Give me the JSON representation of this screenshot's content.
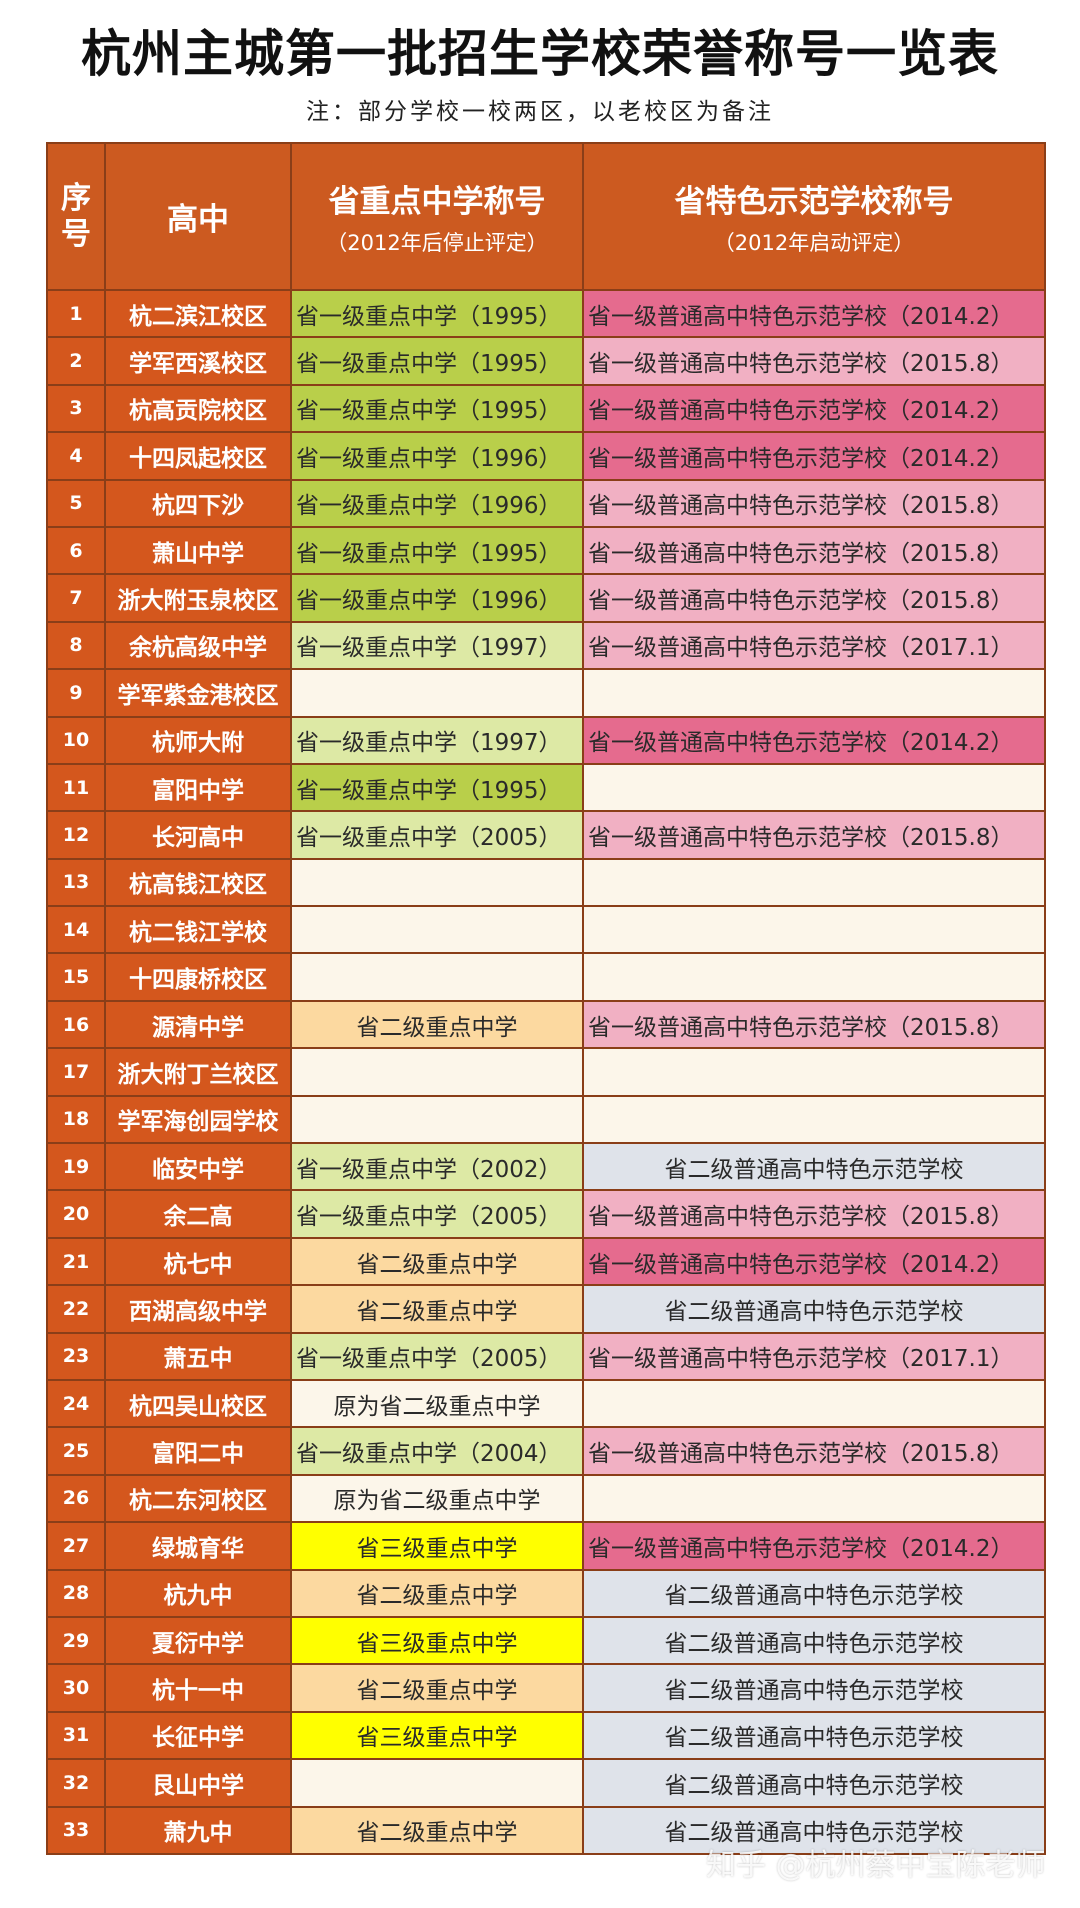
{
  "title": "杭州主城第一批招生学校荣誉称号一览表",
  "note": "注：部分学校一校两区，以老校区为备注",
  "header": {
    "idx": "序号",
    "school": "高中",
    "title1_main": "省重点中学称号",
    "title1_sub": "（2012年后停止评定）",
    "title2_main": "省特色示范学校称号",
    "title2_sub": "（2012年启动评定）"
  },
  "colors": {
    "header_bg": "#cc5a20",
    "first_cols_bg": "#d4571d",
    "green_dark": "#b9cf4a",
    "green_light": "#dde9a5",
    "tan": "#fcd9a0",
    "yellow": "#ffff00",
    "pink_dark": "#e56b8e",
    "pink_light": "#f1b0c3",
    "gray_blue": "#dfe3ea",
    "cream": "#fcf6ea"
  },
  "rows": [
    {
      "idx": "1",
      "school": "杭二滨江校区",
      "t1": "省一级重点中学（1995）",
      "t1c": "green_dark",
      "t1a": "left",
      "t2": "省一级普通高中特色示范学校（2014.2）",
      "t2c": "pink_dark",
      "t2a": "left"
    },
    {
      "idx": "2",
      "school": "学军西溪校区",
      "t1": "省一级重点中学（1995）",
      "t1c": "green_dark",
      "t1a": "left",
      "t2": "省一级普通高中特色示范学校（2015.8）",
      "t2c": "pink_light",
      "t2a": "left"
    },
    {
      "idx": "3",
      "school": "杭高贡院校区",
      "t1": "省一级重点中学（1995）",
      "t1c": "green_dark",
      "t1a": "left",
      "t2": "省一级普通高中特色示范学校（2014.2）",
      "t2c": "pink_dark",
      "t2a": "left"
    },
    {
      "idx": "4",
      "school": "十四凤起校区",
      "t1": "省一级重点中学（1996）",
      "t1c": "green_dark",
      "t1a": "left",
      "t2": "省一级普通高中特色示范学校（2014.2）",
      "t2c": "pink_dark",
      "t2a": "left"
    },
    {
      "idx": "5",
      "school": "杭四下沙",
      "t1": "省一级重点中学（1996）",
      "t1c": "green_dark",
      "t1a": "left",
      "t2": "省一级普通高中特色示范学校（2015.8）",
      "t2c": "pink_light",
      "t2a": "left"
    },
    {
      "idx": "6",
      "school": "萧山中学",
      "t1": "省一级重点中学（1995）",
      "t1c": "green_dark",
      "t1a": "left",
      "t2": "省一级普通高中特色示范学校（2015.8）",
      "t2c": "pink_light",
      "t2a": "left"
    },
    {
      "idx": "7",
      "school": "浙大附玉泉校区",
      "t1": "省一级重点中学（1996）",
      "t1c": "green_dark",
      "t1a": "left",
      "t2": "省一级普通高中特色示范学校（2015.8）",
      "t2c": "pink_light",
      "t2a": "left"
    },
    {
      "idx": "8",
      "school": "余杭高级中学",
      "t1": "省一级重点中学（1997）",
      "t1c": "green_light",
      "t1a": "left",
      "t2": "省一级普通高中特色示范学校（2017.1）",
      "t2c": "pink_light",
      "t2a": "left"
    },
    {
      "idx": "9",
      "school": "学军紫金港校区",
      "t1": "",
      "t1c": "cream",
      "t1a": "center",
      "t2": "",
      "t2c": "cream",
      "t2a": "center"
    },
    {
      "idx": "10",
      "school": "杭师大附",
      "t1": "省一级重点中学（1997）",
      "t1c": "green_light",
      "t1a": "left",
      "t2": "省一级普通高中特色示范学校（2014.2）",
      "t2c": "pink_dark",
      "t2a": "left"
    },
    {
      "idx": "11",
      "school": "富阳中学",
      "t1": "省一级重点中学（1995）",
      "t1c": "green_dark",
      "t1a": "left",
      "t2": "",
      "t2c": "cream",
      "t2a": "center"
    },
    {
      "idx": "12",
      "school": "长河高中",
      "t1": "省一级重点中学（2005）",
      "t1c": "green_light",
      "t1a": "left",
      "t2": "省一级普通高中特色示范学校（2015.8）",
      "t2c": "pink_light",
      "t2a": "left"
    },
    {
      "idx": "13",
      "school": "杭高钱江校区",
      "t1": "",
      "t1c": "cream",
      "t1a": "center",
      "t2": "",
      "t2c": "cream",
      "t2a": "center"
    },
    {
      "idx": "14",
      "school": "杭二钱江学校",
      "t1": "",
      "t1c": "cream",
      "t1a": "center",
      "t2": "",
      "t2c": "cream",
      "t2a": "center"
    },
    {
      "idx": "15",
      "school": "十四康桥校区",
      "t1": "",
      "t1c": "cream",
      "t1a": "center",
      "t2": "",
      "t2c": "cream",
      "t2a": "center"
    },
    {
      "idx": "16",
      "school": "源清中学",
      "t1": "省二级重点中学",
      "t1c": "tan",
      "t1a": "center",
      "t2": "省一级普通高中特色示范学校（2015.8）",
      "t2c": "pink_light",
      "t2a": "left"
    },
    {
      "idx": "17",
      "school": "浙大附丁兰校区",
      "t1": "",
      "t1c": "cream",
      "t1a": "center",
      "t2": "",
      "t2c": "cream",
      "t2a": "center"
    },
    {
      "idx": "18",
      "school": "学军海创园学校",
      "t1": "",
      "t1c": "cream",
      "t1a": "center",
      "t2": "",
      "t2c": "cream",
      "t2a": "center"
    },
    {
      "idx": "19",
      "school": "临安中学",
      "t1": "省一级重点中学（2002）",
      "t1c": "green_light",
      "t1a": "left",
      "t2": "省二级普通高中特色示范学校",
      "t2c": "gray_blue",
      "t2a": "center"
    },
    {
      "idx": "20",
      "school": "余二高",
      "t1": "省一级重点中学（2005）",
      "t1c": "green_light",
      "t1a": "left",
      "t2": "省一级普通高中特色示范学校（2015.8）",
      "t2c": "pink_light",
      "t2a": "left"
    },
    {
      "idx": "21",
      "school": "杭七中",
      "t1": "省二级重点中学",
      "t1c": "tan",
      "t1a": "center",
      "t2": "省一级普通高中特色示范学校（2014.2）",
      "t2c": "pink_dark",
      "t2a": "left"
    },
    {
      "idx": "22",
      "school": "西湖高级中学",
      "t1": "省二级重点中学",
      "t1c": "tan",
      "t1a": "center",
      "t2": "省二级普通高中特色示范学校",
      "t2c": "gray_blue",
      "t2a": "center"
    },
    {
      "idx": "23",
      "school": "萧五中",
      "t1": "省一级重点中学（2005）",
      "t1c": "green_light",
      "t1a": "left",
      "t2": "省一级普通高中特色示范学校（2017.1）",
      "t2c": "pink_light",
      "t2a": "left"
    },
    {
      "idx": "24",
      "school": "杭四吴山校区",
      "t1": "原为省二级重点中学",
      "t1c": "cream",
      "t1a": "center",
      "t2": "",
      "t2c": "cream",
      "t2a": "center"
    },
    {
      "idx": "25",
      "school": "富阳二中",
      "t1": "省一级重点中学（2004）",
      "t1c": "green_light",
      "t1a": "left",
      "t2": "省一级普通高中特色示范学校（2015.8）",
      "t2c": "pink_light",
      "t2a": "left"
    },
    {
      "idx": "26",
      "school": "杭二东河校区",
      "t1": "原为省二级重点中学",
      "t1c": "cream",
      "t1a": "center",
      "t2": "",
      "t2c": "cream",
      "t2a": "center"
    },
    {
      "idx": "27",
      "school": "绿城育华",
      "t1": "省三级重点中学",
      "t1c": "yellow",
      "t1a": "center",
      "t2": "省一级普通高中特色示范学校（2014.2）",
      "t2c": "pink_dark",
      "t2a": "left"
    },
    {
      "idx": "28",
      "school": "杭九中",
      "t1": "省二级重点中学",
      "t1c": "tan",
      "t1a": "center",
      "t2": "省二级普通高中特色示范学校",
      "t2c": "gray_blue",
      "t2a": "center"
    },
    {
      "idx": "29",
      "school": "夏衍中学",
      "t1": "省三级重点中学",
      "t1c": "yellow",
      "t1a": "center",
      "t2": "省二级普通高中特色示范学校",
      "t2c": "gray_blue",
      "t2a": "center"
    },
    {
      "idx": "30",
      "school": "杭十一中",
      "t1": "省二级重点中学",
      "t1c": "tan",
      "t1a": "center",
      "t2": "省二级普通高中特色示范学校",
      "t2c": "gray_blue",
      "t2a": "center"
    },
    {
      "idx": "31",
      "school": "长征中学",
      "t1": "省三级重点中学",
      "t1c": "yellow",
      "t1a": "center",
      "t2": "省二级普通高中特色示范学校",
      "t2c": "gray_blue",
      "t2a": "center"
    },
    {
      "idx": "32",
      "school": "艮山中学",
      "t1": "",
      "t1c": "cream",
      "t1a": "center",
      "t2": "省二级普通高中特色示范学校",
      "t2c": "gray_blue",
      "t2a": "center"
    },
    {
      "idx": "33",
      "school": "萧九中",
      "t1": "省二级重点中学",
      "t1c": "tan",
      "t1a": "center",
      "t2": "省二级普通高中特色示范学校",
      "t2c": "gray_blue",
      "t2a": "center"
    }
  ],
  "watermark": "知乎 @杭州蔡中宝陈老师"
}
